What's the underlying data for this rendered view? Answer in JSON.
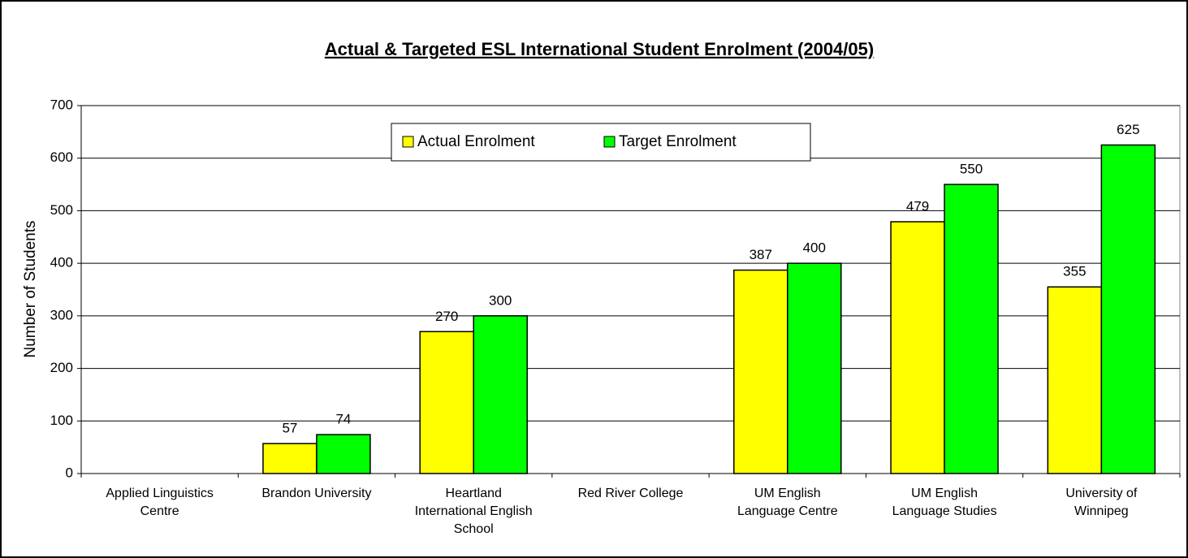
{
  "chart_data": {
    "type": "bar",
    "title": "Actual & Targeted ESL International Student Enrolment (2004/05)",
    "y_label": "Number of Students",
    "categories": [
      "Applied Linguistics Centre",
      "Brandon University",
      "Heartland International English School",
      "Red River College",
      "UM English Language Centre",
      "UM English Language Studies",
      "University of Winnipeg"
    ],
    "series": [
      {
        "name": "Actual Enrolment",
        "color": "#ffff00",
        "values": [
          null,
          57,
          270,
          null,
          387,
          479,
          355
        ]
      },
      {
        "name": "Target Enrolment",
        "color": "#00ff00",
        "values": [
          null,
          74,
          300,
          null,
          400,
          550,
          625
        ]
      }
    ],
    "ylim": [
      0,
      700
    ],
    "yticks": [
      0,
      100,
      200,
      300,
      400,
      500,
      600,
      700
    ],
    "grid": true,
    "legend": "top"
  }
}
